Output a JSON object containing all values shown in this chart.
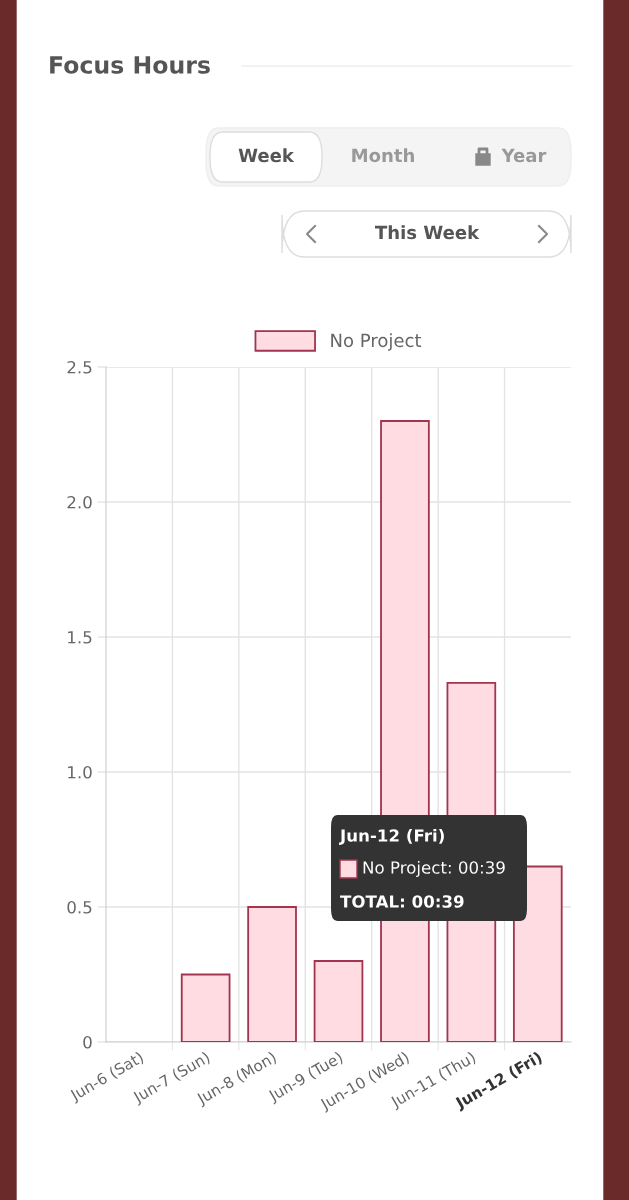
{
  "chart_data": {
    "type": "bar",
    "title": "Focus Hours",
    "categories": [
      "Jun-6 (Sat)",
      "Jun-7 (Sun)",
      "Jun-8 (Mon)",
      "Jun-9 (Tue)",
      "Jun-10 (Wed)",
      "Jun-11 (Thu)",
      "Jun-12 (Fri)"
    ],
    "series": [
      {
        "name": "No Project",
        "color": "#ffdbe2",
        "values": [
          0,
          0.25,
          0.5,
          0.3,
          2.3,
          1.33,
          0.65
        ]
      }
    ],
    "ylim": [
      0,
      2.5
    ],
    "yticks": [
      {
        "value": 0,
        "label": "0"
      },
      0.5,
      {
        "value": 1,
        "label": "1.0"
      },
      1.5,
      {
        "value": 2,
        "label": "2.0"
      },
      2.5
    ],
    "grid": true,
    "legend": "top",
    "annotations": [
      "Week",
      "Month",
      "Year",
      "This Week",
      "Jun-12 (Fri)",
      "No Project: 00:39",
      "TOTAL: 00:39"
    ]
  }
}
